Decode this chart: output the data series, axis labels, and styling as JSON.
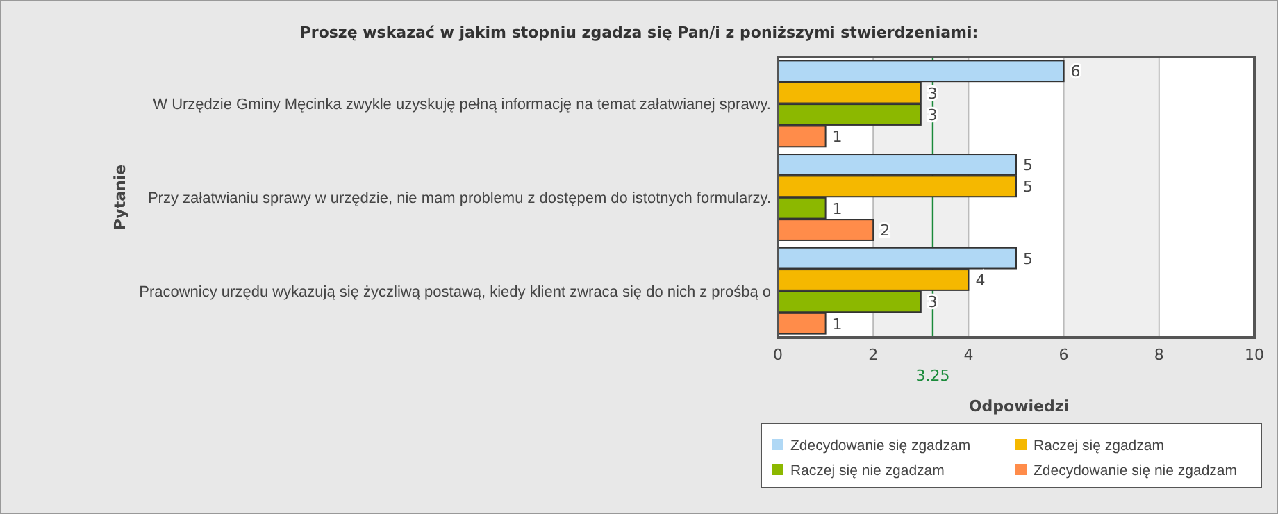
{
  "chart_data": {
    "type": "bar",
    "orientation": "horizontal",
    "title": "Proszę wskazać w jakim stopniu zgadza się Pan/i z poniższymi stwierdzeniami:",
    "xlabel": "Odpowiedzi",
    "ylabel": "Pytanie",
    "categories": [
      "W Urzędzie Gminy Męcinka zwykle uzyskuję pełną informację na temat załatwianej sprawy.",
      "Przy załatwianiu sprawy w urzędzie, nie mam problemu z dostępem do istotnych formularzy.",
      "Pracownicy urzędu wykazują się życzliwą postawą, kiedy klient zwraca się do nich z prośbą o"
    ],
    "series": [
      {
        "name": "Zdecydowanie się zgadzam",
        "color": "#b0d8f5",
        "values": [
          6,
          5,
          5
        ]
      },
      {
        "name": "Raczej się zgadzam",
        "color": "#f5b800",
        "values": [
          3,
          5,
          4
        ]
      },
      {
        "name": "Raczej się nie zgadzam",
        "color": "#8cb800",
        "values": [
          3,
          1,
          3
        ]
      },
      {
        "name": "Zdecydowanie się nie zgadzam",
        "color": "#ff8c4a",
        "values": [
          1,
          2,
          1
        ]
      }
    ],
    "xlim": [
      0,
      10
    ],
    "xticks": [
      0,
      2,
      4,
      6,
      8,
      10
    ],
    "grid": "x",
    "data_labels": true,
    "legend": "bottom right",
    "ref_lines": [
      {
        "axis": "x",
        "value": 3.25,
        "label": "3.25",
        "color": "#1a8a3a"
      }
    ]
  }
}
